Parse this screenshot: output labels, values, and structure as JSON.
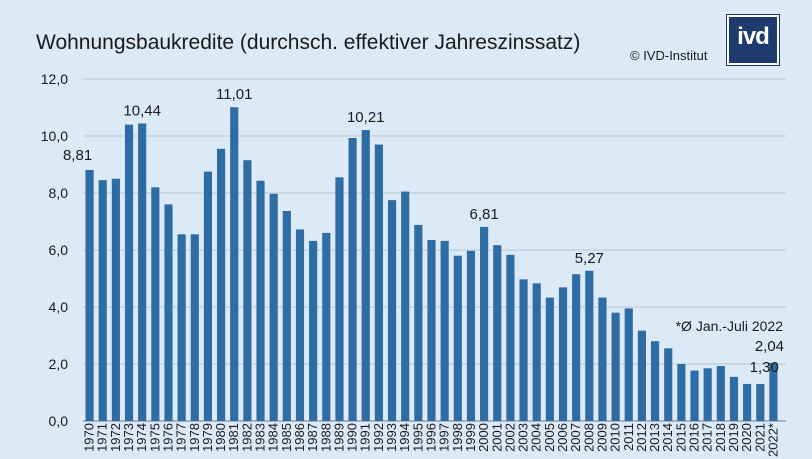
{
  "header": {
    "title": "Wohnungsbaukredite (durchsch. effektiver Jahreszinssatz)",
    "copyright": "© IVD-Institut",
    "logo_text": "ivd"
  },
  "chart_data": {
    "type": "bar",
    "title": "Wohnungsbaukredite (durchsch. effektiver Jahreszinssatz)",
    "xlabel": "",
    "ylabel": "",
    "ylim": [
      0,
      12
    ],
    "yticks": [
      "0,0",
      "2,0",
      "4,0",
      "6,0",
      "8,0",
      "10,0",
      "12,0"
    ],
    "grid": true,
    "bar_color": "#2e6da4",
    "categories": [
      "1970",
      "1971",
      "1972",
      "1973",
      "1974",
      "1975",
      "1976",
      "1977",
      "1978",
      "1979",
      "1980",
      "1981",
      "1982",
      "1983",
      "1984",
      "1985",
      "1986",
      "1987",
      "1988",
      "1989",
      "1990",
      "1991",
      "1992",
      "1993",
      "1994",
      "1995",
      "1996",
      "1997",
      "1998",
      "1999",
      "2000",
      "2001",
      "2002",
      "2003",
      "2004",
      "2005",
      "2006",
      "2007",
      "2008",
      "2009",
      "2010",
      "2011",
      "2012",
      "2013",
      "2014",
      "2015",
      "2016",
      "2017",
      "2018",
      "2019",
      "2020",
      "2021",
      "2022*"
    ],
    "values": [
      8.81,
      8.45,
      8.5,
      10.4,
      10.44,
      8.2,
      7.6,
      6.55,
      6.55,
      8.75,
      9.55,
      11.01,
      9.15,
      8.43,
      7.97,
      7.37,
      6.72,
      6.32,
      6.6,
      8.55,
      9.93,
      10.21,
      9.7,
      7.75,
      8.05,
      6.88,
      6.35,
      6.32,
      5.8,
      5.97,
      6.81,
      6.17,
      5.83,
      4.97,
      4.83,
      4.33,
      4.69,
      5.15,
      5.27,
      4.33,
      3.8,
      3.95,
      3.17,
      2.8,
      2.55,
      2.0,
      1.77,
      1.85,
      1.93,
      1.55,
      1.3,
      1.3,
      2.04
    ],
    "data_labels": [
      {
        "index": 0,
        "text": "8,81"
      },
      {
        "index": 4,
        "text": "10,44"
      },
      {
        "index": 11,
        "text": "11,01"
      },
      {
        "index": 21,
        "text": "10,21"
      },
      {
        "index": 30,
        "text": "6,81"
      },
      {
        "index": 38,
        "text": "5,27"
      },
      {
        "index": 51,
        "text": "1,30"
      },
      {
        "index": 52,
        "text": "2,04"
      }
    ],
    "annotations": [
      "*Ø Jan.-Juli 2022"
    ]
  }
}
